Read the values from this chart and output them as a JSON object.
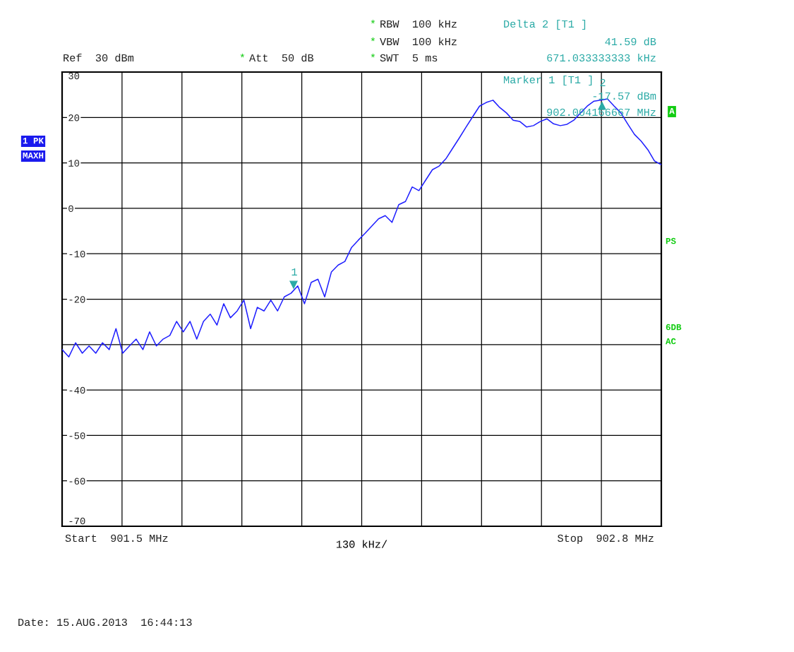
{
  "chart_data": {
    "type": "line",
    "categories": [
      null,
      null,
      null,
      null,
      null,
      null,
      null,
      null,
      null,
      null,
      null,
      null,
      null,
      null,
      null,
      null,
      null,
      null,
      null,
      null,
      null,
      null,
      null,
      null,
      null,
      null,
      null,
      null,
      null,
      null,
      null,
      null,
      null,
      null,
      null,
      null,
      null,
      null,
      null,
      null,
      null,
      null,
      null,
      null,
      null,
      null,
      null,
      null,
      null,
      null,
      null,
      null,
      null,
      null,
      null,
      null,
      null,
      null,
      null,
      null,
      null,
      null,
      null,
      null,
      null,
      null,
      null,
      null,
      null,
      null,
      null,
      null,
      null,
      null,
      null,
      null,
      null,
      null,
      null,
      null,
      null,
      null,
      null,
      null,
      null,
      null,
      null,
      null,
      null,
      null
    ],
    "xlabel": "130 kHz/",
    "ylim": [
      -70,
      30
    ],
    "yticks": [
      30,
      20,
      10,
      0,
      -10,
      -20,
      {
        "value": -30,
        "label": null
      },
      -40,
      -50,
      -60,
      -70
    ],
    "grid": true,
    "legend": false,
    "marker": "none",
    "line_style": "solid",
    "series": [
      {
        "color": "#1f1fff",
        "values": [
          -31.1,
          -32.7,
          -29.6,
          -31.9,
          -30.3,
          -31.9,
          -29.6,
          -31.1,
          -26.5,
          -31.9,
          -30.3,
          -28.8,
          -31.1,
          -27.2,
          -30.3,
          -28.8,
          -28.0,
          -24.9,
          -27.2,
          -24.9,
          -28.8,
          -24.9,
          -23.3,
          -25.7,
          -21.0,
          -24.1,
          -22.6,
          -20.2,
          -26.5,
          -21.8,
          -22.6,
          -20.2,
          -22.6,
          -19.5,
          -18.7,
          -17.1,
          -21.0,
          -16.3,
          -15.6,
          -19.5,
          -14.0,
          -12.5,
          -11.7,
          -8.6,
          -7.0,
          -5.5,
          -3.9,
          -2.3,
          -1.6,
          -3.1,
          0.8,
          1.5,
          4.7,
          3.9,
          6.2,
          8.5,
          9.3,
          10.9,
          13.2,
          15.5,
          17.9,
          20.2,
          22.5,
          23.3,
          23.8,
          22.2,
          21.0,
          19.4,
          19.1,
          17.9,
          18.2,
          19.1,
          19.7,
          18.6,
          18.2,
          18.5,
          19.4,
          21.0,
          22.5,
          23.6,
          23.8,
          24.1,
          22.5,
          21.0,
          18.6,
          16.3,
          14.8,
          12.9,
          10.4,
          9.6
        ]
      }
    ],
    "annotations": [
      "*",
      "RBW  100 kHz",
      "*",
      "VBW  100 kHz",
      "*",
      "SWT  5 ms",
      "Ref  30 dBm",
      "*",
      "Att  50 dB",
      "Delta 2 [T1 ]",
      "41.59 dB",
      "671.033333333 kHz",
      "Marker 1 [T1 ]",
      "-17.57 dBm",
      "902.004166667 MHz",
      "1 PK",
      "MAXH",
      "A",
      "PS",
      "6DB",
      "AC",
      "Date: 15.AUG.2013  16:44:13",
      "Start  901.5 MHz",
      "Stop  902.8 MHz",
      "1",
      "2"
    ]
  }
}
